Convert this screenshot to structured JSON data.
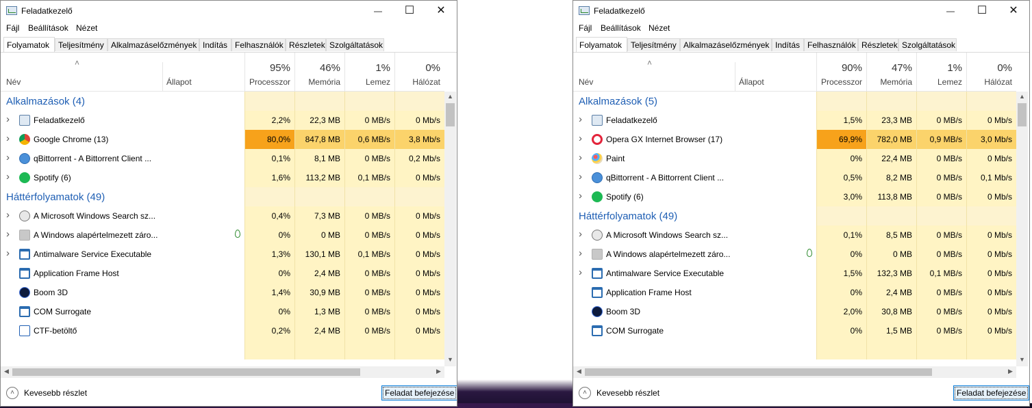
{
  "windows": [
    {
      "title": "Feladatkezelő",
      "menu": [
        "Fájl",
        "Beállítások",
        "Nézet"
      ],
      "tabs": [
        "Folyamatok",
        "Teljesítmény",
        "Alkalmazáselőzmények",
        "Indítás",
        "Felhasználók",
        "Részletek",
        "Szolgáltatások"
      ],
      "active_tab": "Folyamatok",
      "columns": {
        "name": "Név",
        "state": "Állapot"
      },
      "metrics": [
        {
          "pct": "95%",
          "label": "Processzor"
        },
        {
          "pct": "46%",
          "label": "Memória"
        },
        {
          "pct": "1%",
          "label": "Lemez"
        },
        {
          "pct": "0%",
          "label": "Hálózat"
        }
      ],
      "rows": [
        {
          "kind": "group",
          "label": "Alkalmazások (4)"
        },
        {
          "kind": "proc",
          "expand": true,
          "icon": "task-manager-icon",
          "name": "Feladatkezelő",
          "cpu": "2,2%",
          "mem": "22,3 MB",
          "disk": "0 MB/s",
          "net": "0 Mb/s"
        },
        {
          "kind": "proc",
          "expand": true,
          "icon": "chrome-icon",
          "name": "Google Chrome (13)",
          "cpu": "80,0%",
          "mem": "847,8 MB",
          "disk": "0,6 MB/s",
          "net": "3,8 Mb/s",
          "hot": true
        },
        {
          "kind": "proc",
          "expand": true,
          "icon": "qbittorrent-icon",
          "name": "qBittorrent - A Bittorrent Client ...",
          "cpu": "0,1%",
          "mem": "8,1 MB",
          "disk": "0 MB/s",
          "net": "0,2 Mb/s"
        },
        {
          "kind": "proc",
          "expand": true,
          "icon": "spotify-icon",
          "name": "Spotify (6)",
          "cpu": "1,6%",
          "mem": "113,2 MB",
          "disk": "0,1 MB/s",
          "net": "0 Mb/s"
        },
        {
          "kind": "group",
          "label": "Háttérfolyamatok (49)"
        },
        {
          "kind": "proc",
          "expand": true,
          "icon": "search-service-icon",
          "name": "A Microsoft Windows Search sz...",
          "cpu": "0,4%",
          "mem": "7,3 MB",
          "disk": "0 MB/s",
          "net": "0 Mb/s"
        },
        {
          "kind": "proc",
          "expand": true,
          "icon": "generic-process-icon",
          "name": "A Windows alapértelmezett záro...",
          "cpu": "0%",
          "mem": "0 MB",
          "disk": "0 MB/s",
          "net": "0 Mb/s",
          "leaf": true
        },
        {
          "kind": "proc",
          "expand": true,
          "icon": "window-app-icon",
          "name": "Antimalware Service Executable",
          "cpu": "1,3%",
          "mem": "130,1 MB",
          "disk": "0,1 MB/s",
          "net": "0 Mb/s"
        },
        {
          "kind": "proc",
          "expand": false,
          "icon": "window-app-icon",
          "name": "Application Frame Host",
          "cpu": "0%",
          "mem": "2,4 MB",
          "disk": "0 MB/s",
          "net": "0 Mb/s"
        },
        {
          "kind": "proc",
          "expand": false,
          "icon": "boom3d-icon",
          "name": "Boom 3D",
          "cpu": "1,4%",
          "mem": "30,9 MB",
          "disk": "0 MB/s",
          "net": "0 Mb/s"
        },
        {
          "kind": "proc",
          "expand": false,
          "icon": "window-app-icon",
          "name": "COM Surrogate",
          "cpu": "0%",
          "mem": "1,3 MB",
          "disk": "0 MB/s",
          "net": "0 Mb/s"
        },
        {
          "kind": "proc",
          "expand": false,
          "icon": "ctf-loader-icon",
          "name": "CTF-betöltő",
          "cpu": "0,2%",
          "mem": "2,4 MB",
          "disk": "0 MB/s",
          "net": "0 Mb/s"
        }
      ],
      "footer": {
        "fewer": "Kevesebb részlet",
        "end_task": "Feladat befejezése"
      }
    },
    {
      "title": "Feladatkezelő",
      "menu": [
        "Fájl",
        "Beállítások",
        "Nézet"
      ],
      "tabs": [
        "Folyamatok",
        "Teljesítmény",
        "Alkalmazáselőzmények",
        "Indítás",
        "Felhasználók",
        "Részletek",
        "Szolgáltatások"
      ],
      "active_tab": "Folyamatok",
      "columns": {
        "name": "Név",
        "state": "Állapot"
      },
      "metrics": [
        {
          "pct": "90%",
          "label": "Processzor"
        },
        {
          "pct": "47%",
          "label": "Memória"
        },
        {
          "pct": "1%",
          "label": "Lemez"
        },
        {
          "pct": "0%",
          "label": "Hálózat"
        }
      ],
      "rows": [
        {
          "kind": "group",
          "label": "Alkalmazások (5)"
        },
        {
          "kind": "proc",
          "expand": true,
          "icon": "task-manager-icon",
          "name": "Feladatkezelő",
          "cpu": "1,5%",
          "mem": "23,3 MB",
          "disk": "0 MB/s",
          "net": "0 Mb/s"
        },
        {
          "kind": "proc",
          "expand": true,
          "icon": "opera-gx-icon",
          "name": "Opera GX Internet Browser (17)",
          "cpu": "69,9%",
          "mem": "782,0 MB",
          "disk": "0,9 MB/s",
          "net": "3,0 Mb/s",
          "hot": true
        },
        {
          "kind": "proc",
          "expand": true,
          "icon": "paint-icon",
          "name": "Paint",
          "cpu": "0%",
          "mem": "22,4 MB",
          "disk": "0 MB/s",
          "net": "0 Mb/s"
        },
        {
          "kind": "proc",
          "expand": true,
          "icon": "qbittorrent-icon",
          "name": "qBittorrent - A Bittorrent Client ...",
          "cpu": "0,5%",
          "mem": "8,2 MB",
          "disk": "0 MB/s",
          "net": "0,1 Mb/s"
        },
        {
          "kind": "proc",
          "expand": true,
          "icon": "spotify-icon",
          "name": "Spotify (6)",
          "cpu": "3,0%",
          "mem": "113,8 MB",
          "disk": "0 MB/s",
          "net": "0 Mb/s"
        },
        {
          "kind": "group",
          "label": "Háttérfolyamatok (49)"
        },
        {
          "kind": "proc",
          "expand": true,
          "icon": "search-service-icon",
          "name": "A Microsoft Windows Search sz...",
          "cpu": "0,1%",
          "mem": "8,5 MB",
          "disk": "0 MB/s",
          "net": "0 Mb/s"
        },
        {
          "kind": "proc",
          "expand": true,
          "icon": "generic-process-icon",
          "name": "A Windows alapértelmezett záro...",
          "cpu": "0%",
          "mem": "0 MB",
          "disk": "0 MB/s",
          "net": "0 Mb/s",
          "leaf": true
        },
        {
          "kind": "proc",
          "expand": true,
          "icon": "window-app-icon",
          "name": "Antimalware Service Executable",
          "cpu": "1,5%",
          "mem": "132,3 MB",
          "disk": "0,1 MB/s",
          "net": "0 Mb/s"
        },
        {
          "kind": "proc",
          "expand": false,
          "icon": "window-app-icon",
          "name": "Application Frame Host",
          "cpu": "0%",
          "mem": "2,4 MB",
          "disk": "0 MB/s",
          "net": "0 Mb/s"
        },
        {
          "kind": "proc",
          "expand": false,
          "icon": "boom3d-icon",
          "name": "Boom 3D",
          "cpu": "2,0%",
          "mem": "30,8 MB",
          "disk": "0 MB/s",
          "net": "0 Mb/s"
        },
        {
          "kind": "proc",
          "expand": false,
          "icon": "window-app-icon",
          "name": "COM Surrogate",
          "cpu": "0%",
          "mem": "1,5 MB",
          "disk": "0 MB/s",
          "net": "0 Mb/s"
        }
      ],
      "footer": {
        "fewer": "Kevesebb részlet",
        "end_task": "Feladat befejezése"
      }
    }
  ],
  "colors": {
    "group_title": "#1f5fb4",
    "cell_normal": "#fff4c4",
    "cell_header_band": "#fdf3d0",
    "cell_hot_cpu": "#f7a21b",
    "cell_hot_other": "#fbd36b",
    "end_task_border": "#0078d7"
  }
}
